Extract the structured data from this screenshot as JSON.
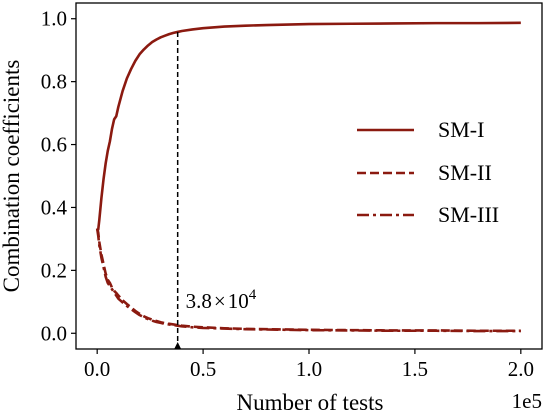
{
  "chart_data": {
    "type": "line",
    "xlabel": "Number of tests",
    "ylabel": "Combination coefficients",
    "x_offset_label": "1e5",
    "xlim": [
      -10000,
      210000
    ],
    "ylim": [
      -0.05,
      1.05
    ],
    "x_ticks": [
      0,
      50000,
      100000,
      150000,
      200000
    ],
    "x_tick_labels": [
      "0.0",
      "0.5",
      "1.0",
      "1.5",
      "2.0"
    ],
    "y_ticks": [
      0.0,
      0.2,
      0.4,
      0.6,
      0.8,
      1.0
    ],
    "y_tick_labels": [
      "0.0",
      "0.2",
      "0.4",
      "0.6",
      "0.8",
      "1.0"
    ],
    "grid": false,
    "legend_position": "center-right",
    "color": "#8b1a10",
    "series": [
      {
        "name": "SM-I",
        "style": "solid",
        "x": [
          0,
          500,
          1000,
          2000,
          3000,
          4000,
          5000,
          6000,
          7000,
          8000,
          9000,
          10000,
          12000,
          14000,
          16000,
          18000,
          20000,
          22000,
          24000,
          26000,
          28000,
          30000,
          32000,
          34000,
          36000,
          38000,
          40000,
          45000,
          50000,
          60000,
          70000,
          80000,
          100000,
          120000,
          140000,
          160000,
          180000,
          200000
        ],
        "y": [
          0.333,
          0.33,
          0.36,
          0.43,
          0.49,
          0.54,
          0.58,
          0.61,
          0.65,
          0.68,
          0.69,
          0.72,
          0.77,
          0.81,
          0.84,
          0.866,
          0.887,
          0.902,
          0.915,
          0.926,
          0.934,
          0.941,
          0.946,
          0.951,
          0.955,
          0.958,
          0.961,
          0.966,
          0.97,
          0.975,
          0.978,
          0.98,
          0.983,
          0.984,
          0.985,
          0.986,
          0.986,
          0.987
        ]
      },
      {
        "name": "SM-II",
        "style": "dashed",
        "x": [
          0,
          500,
          1000,
          2000,
          3000,
          4000,
          5000,
          6000,
          7000,
          8000,
          9000,
          10000,
          12000,
          14000,
          16000,
          18000,
          20000,
          22000,
          24000,
          26000,
          28000,
          30000,
          32000,
          34000,
          36000,
          38000,
          40000,
          45000,
          50000,
          60000,
          70000,
          80000,
          100000,
          120000,
          140000,
          160000,
          180000,
          200000
        ],
        "y": [
          0.333,
          0.32,
          0.29,
          0.25,
          0.22,
          0.19,
          0.17,
          0.16,
          0.145,
          0.135,
          0.128,
          0.12,
          0.105,
          0.093,
          0.082,
          0.071,
          0.062,
          0.054,
          0.048,
          0.043,
          0.039,
          0.035,
          0.032,
          0.03,
          0.028,
          0.026,
          0.024,
          0.021,
          0.019,
          0.016,
          0.014,
          0.013,
          0.011,
          0.01,
          0.009,
          0.009,
          0.008,
          0.008
        ]
      },
      {
        "name": "SM-III",
        "style": "dashdot",
        "x": [
          0,
          500,
          1000,
          2000,
          3000,
          4000,
          5000,
          6000,
          7000,
          8000,
          9000,
          10000,
          12000,
          14000,
          16000,
          18000,
          20000,
          22000,
          24000,
          26000,
          28000,
          30000,
          32000,
          34000,
          36000,
          38000,
          40000,
          45000,
          50000,
          60000,
          70000,
          80000,
          100000,
          120000,
          140000,
          160000,
          180000,
          200000
        ],
        "y": [
          0.333,
          0.31,
          0.28,
          0.24,
          0.21,
          0.18,
          0.16,
          0.15,
          0.14,
          0.13,
          0.12,
          0.11,
          0.098,
          0.087,
          0.077,
          0.067,
          0.058,
          0.051,
          0.045,
          0.04,
          0.036,
          0.033,
          0.03,
          0.028,
          0.026,
          0.024,
          0.022,
          0.019,
          0.017,
          0.015,
          0.013,
          0.012,
          0.01,
          0.009,
          0.008,
          0.008,
          0.007,
          0.007
        ]
      }
    ],
    "annotation": {
      "x": 38000,
      "mantissa": "3.8",
      "times": "×",
      "base": "10",
      "exponent": "4"
    }
  }
}
